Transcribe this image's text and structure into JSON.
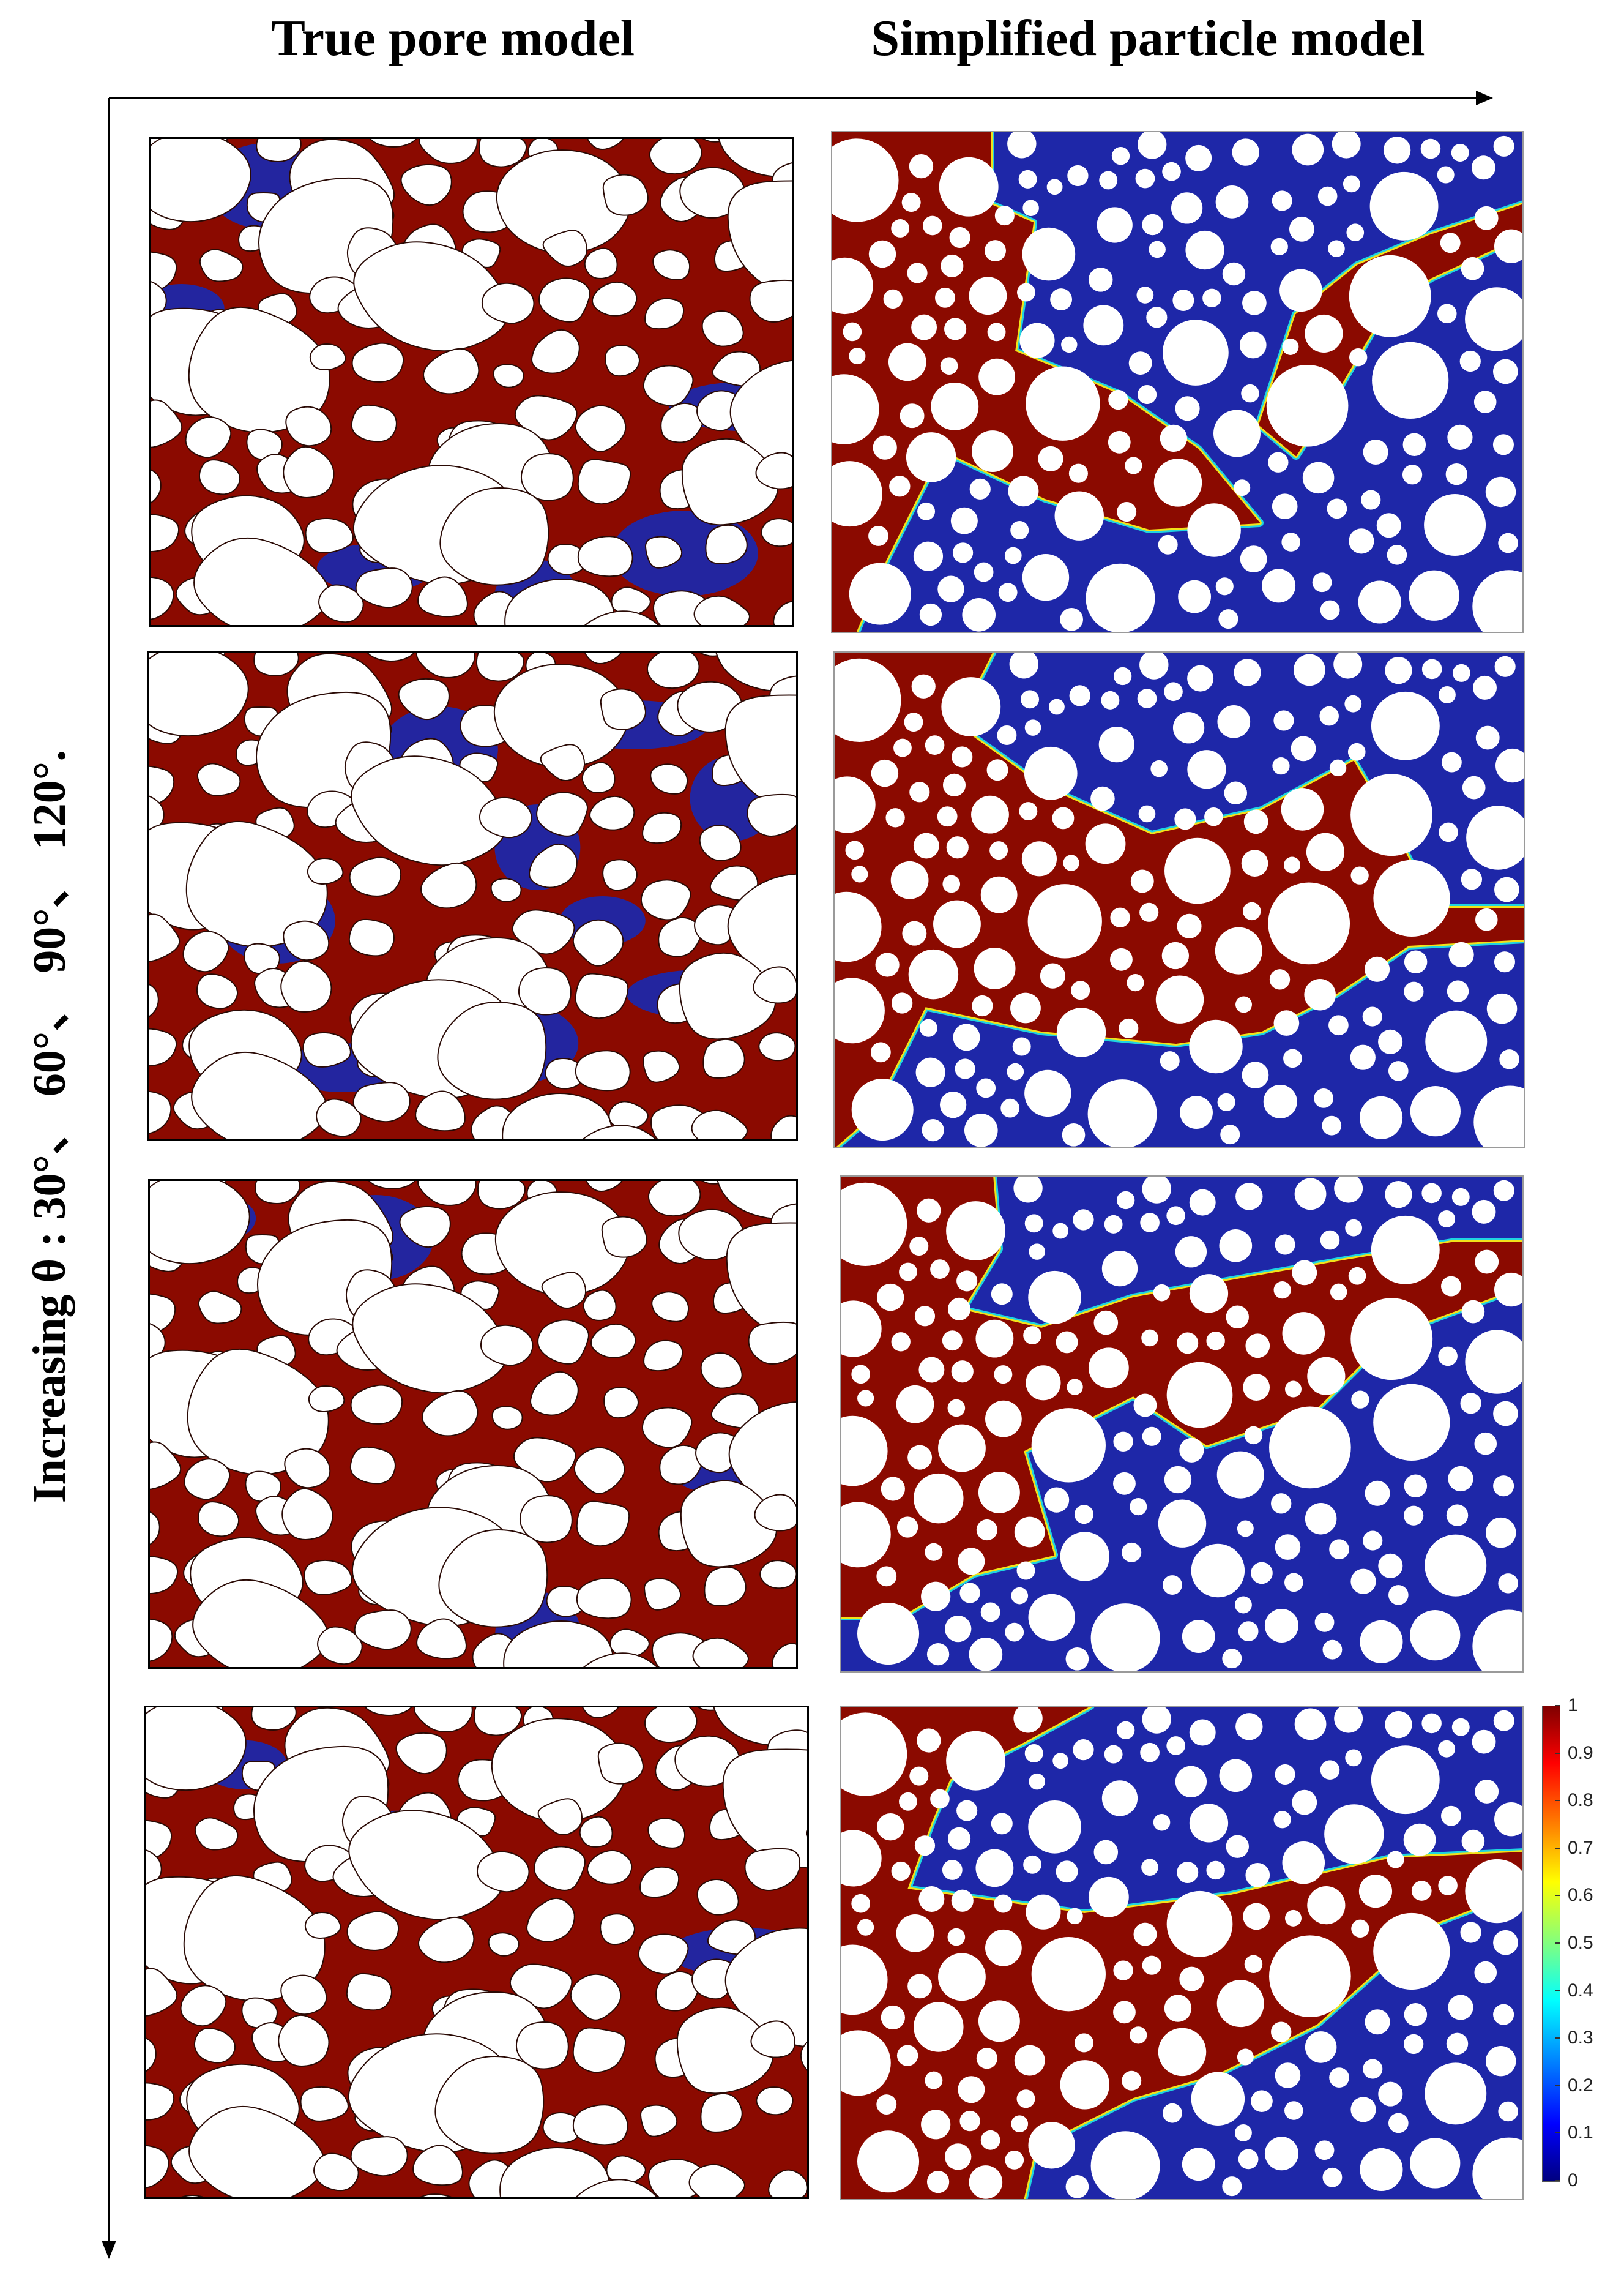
{
  "titles": {
    "left": "True pore model",
    "right": "Simplified particle model"
  },
  "side_label": "Increasing θ : 30°、 60°、 90°、 120°.",
  "colors": {
    "wetting_phase": "#8b0a00",
    "nonwetting_phase": "#1e27a8",
    "solid_grain": "#ffffff",
    "interface_cyan": "#1fd4e0",
    "interface_yellow": "#f2e21a"
  },
  "colorbar": {
    "min": 0,
    "max": 1,
    "ticks": [
      "1",
      "0.9",
      "0.8",
      "0.7",
      "0.6",
      "0.5",
      "0.4",
      "0.3",
      "0.2",
      "0.1",
      "0"
    ],
    "colormap": "jet"
  },
  "rows": [
    {
      "contact_angle": "30°"
    },
    {
      "contact_angle": "60°"
    },
    {
      "contact_angle": "90°"
    },
    {
      "contact_angle": "120°"
    }
  ]
}
